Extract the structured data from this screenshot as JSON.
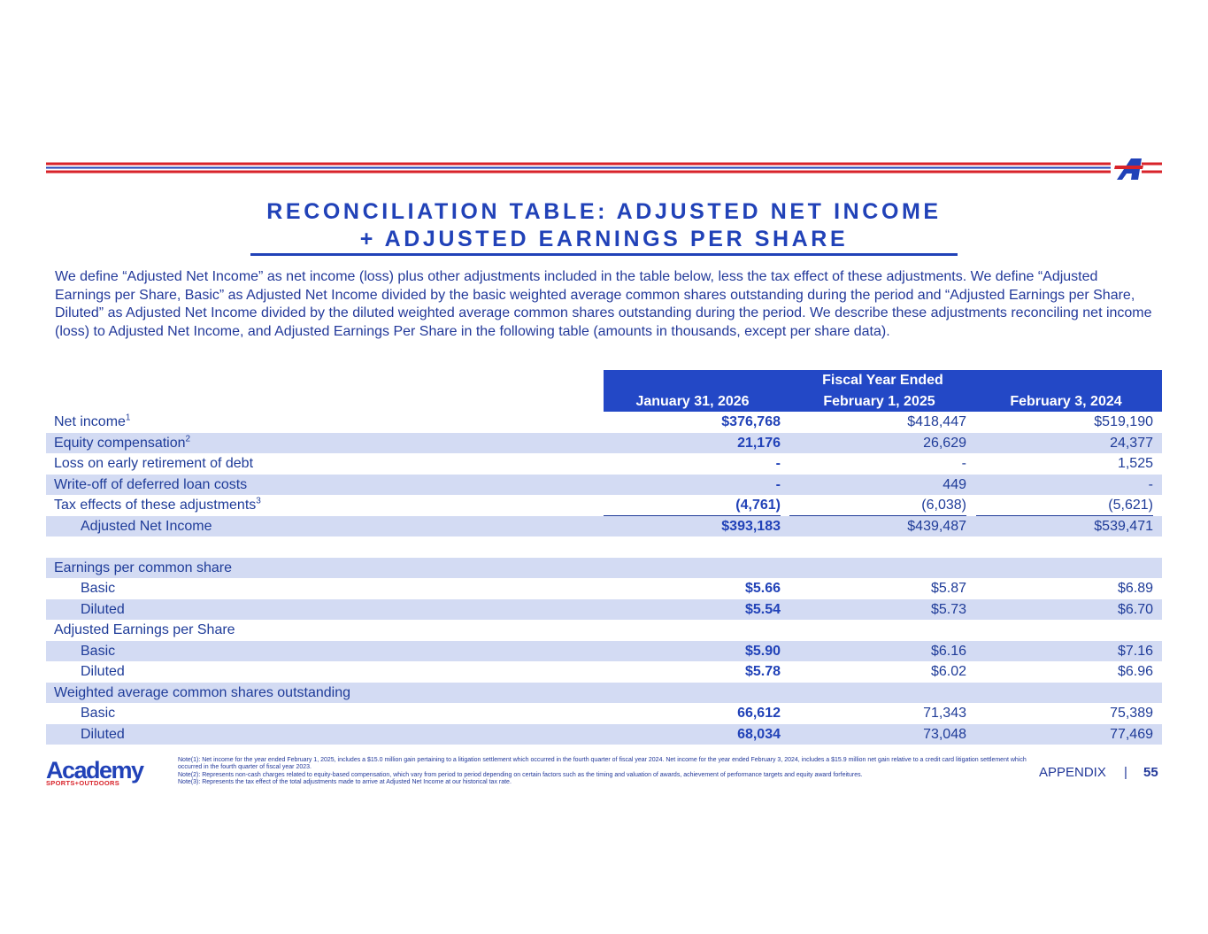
{
  "header": {
    "title_lines": [
      "RECONCILIATION TABLE: ADJUSTED NET INCOME",
      "+ ADJUSTED EARNINGS PER SHARE"
    ]
  },
  "intro": "We define “Adjusted Net Income” as net income (loss) plus other adjustments included in the table below, less the tax effect of these adjustments. We define “Adjusted Earnings per Share, Basic” as Adjusted Net Income divided by the basic weighted average common shares outstanding during the period and “Adjusted Earnings per Share, Diluted” as Adjusted Net Income divided by the diluted weighted average common shares outstanding during the period. We describe these adjustments reconciling net income (loss) to Adjusted Net Income, and Adjusted Earnings Per Share in the following table (amounts in thousands, except per share data).",
  "table": {
    "group_header": "Fiscal Year Ended",
    "columns": [
      "January 31, 2026",
      "February 1, 2025",
      "February 3, 2024"
    ],
    "rows": [
      {
        "label": "Net income",
        "note": "1",
        "values": [
          "$376,768",
          "$418,447",
          "$519,190"
        ]
      },
      {
        "label": "Equity compensation",
        "note": "2",
        "values": [
          "21,176",
          "26,629",
          "24,377"
        ]
      },
      {
        "label": "Loss on early retirement of debt",
        "values": [
          "-",
          "-",
          "1,525"
        ]
      },
      {
        "label": "Write-off of deferred loan costs",
        "values": [
          "-",
          "449",
          "-"
        ]
      },
      {
        "label": "Tax effects of these adjustments",
        "note": "3",
        "values": [
          "(4,761)",
          "(6,038)",
          "(5,621)"
        ]
      },
      {
        "label": "Adjusted Net Income",
        "values": [
          "$393,183",
          "$439,487",
          "$539,471"
        ]
      },
      {
        "label": "Earnings per common share"
      },
      {
        "label": "Basic",
        "values": [
          "$5.66",
          "$5.87",
          "$6.89"
        ]
      },
      {
        "label": "Diluted",
        "values": [
          "$5.54",
          "$5.73",
          "$6.70"
        ]
      },
      {
        "label": "Adjusted Earnings per Share"
      },
      {
        "label": "Basic",
        "values": [
          "$5.90",
          "$6.16",
          "$7.16"
        ]
      },
      {
        "label": "Diluted",
        "values": [
          "$5.78",
          "$6.02",
          "$6.96"
        ]
      },
      {
        "label": "Weighted average common shares outstanding"
      },
      {
        "label": "Basic",
        "values": [
          "66,612",
          "71,343",
          "75,389"
        ]
      },
      {
        "label": "Diluted",
        "values": [
          "68,034",
          "73,048",
          "77,469"
        ]
      }
    ]
  },
  "notes": [
    "Note(1): Net income for the year ended February 1, 2025, includes a $15.0 million gain pertaining to a litigation settlement which occurred in the fourth quarter of fiscal year 2024. Net income for the year ended February 3, 2024, includes a $15.9 million net gain relative to a credit card litigation settlement which occurred in the fourth quarter of fiscal year 2023.",
    "Note(2): Represents non-cash charges related to equity-based compensation, which vary from period to period depending on certain factors such as the timing and valuation of awards, achievement of performance targets and equity award forfeitures.",
    "Note(3): Represents the tax effect of the total adjustments made to arrive at Adjusted Net Income at our historical tax rate."
  ],
  "footer": {
    "logo": "Academy",
    "logo_sub": "SPORTS+OUTDOORS",
    "section": "APPENDIX",
    "separator": "|",
    "page": "55"
  }
}
